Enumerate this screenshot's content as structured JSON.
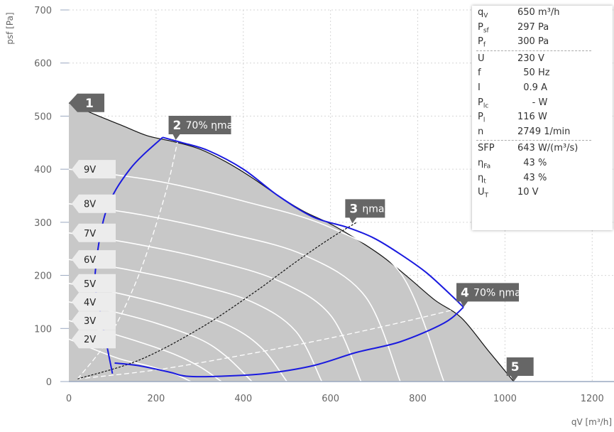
{
  "chart_data": {
    "type": "line",
    "title": "",
    "xlabel": "qV [m³/h]",
    "ylabel": "psf [Pa]",
    "xlim": [
      0,
      1250
    ],
    "ylim": [
      0,
      700
    ],
    "xticks": [
      0,
      200,
      400,
      600,
      800,
      1000,
      1200
    ],
    "yticks": [
      0,
      100,
      200,
      300,
      400,
      500,
      600,
      700
    ],
    "grid": true,
    "envelope": {
      "x": [
        0,
        60,
        120,
        180,
        240,
        300,
        360,
        420,
        480,
        540,
        600,
        660,
        720,
        780,
        840,
        900,
        960,
        1020
      ],
      "y": [
        525,
        503,
        483,
        463,
        452,
        438,
        414,
        384,
        350,
        320,
        297,
        268,
        235,
        195,
        153,
        120,
        60,
        0
      ]
    },
    "series": [
      {
        "name": "2V",
        "x": [
          0,
          60,
          120,
          180,
          240,
          280
        ],
        "y": [
          80,
          60,
          42,
          30,
          15,
          0
        ]
      },
      {
        "name": "3V",
        "x": [
          0,
          80,
          160,
          240,
          300,
          350
        ],
        "y": [
          115,
          95,
          75,
          52,
          28,
          0
        ]
      },
      {
        "name": "4V",
        "x": [
          0,
          100,
          200,
          300,
          360,
          420
        ],
        "y": [
          150,
          132,
          110,
          80,
          48,
          0
        ]
      },
      {
        "name": "5V",
        "x": [
          0,
          120,
          240,
          360,
          440,
          500
        ],
        "y": [
          185,
          165,
          140,
          108,
          65,
          0
        ]
      },
      {
        "name": "6V",
        "x": [
          0,
          140,
          280,
          420,
          520,
          580
        ],
        "y": [
          230,
          210,
          185,
          150,
          95,
          0
        ]
      },
      {
        "name": "7V",
        "x": [
          0,
          160,
          320,
          480,
          600,
          670
        ],
        "y": [
          280,
          258,
          230,
          190,
          125,
          0
        ]
      },
      {
        "name": "8V",
        "x": [
          0,
          180,
          360,
          540,
          680,
          760
        ],
        "y": [
          335,
          312,
          280,
          238,
          160,
          0
        ]
      },
      {
        "name": "9V",
        "x": [
          0,
          200,
          400,
          600,
          760,
          860
        ],
        "y": [
          400,
          378,
          340,
          290,
          205,
          0
        ]
      }
    ],
    "curves": {
      "blue_left": {
        "x": [
          100,
          70,
          60,
          85,
          140,
          215
        ],
        "y": [
          15,
          140,
          200,
          320,
          400,
          460
        ]
      },
      "blue_top": {
        "x": [
          215,
          260,
          320,
          400,
          480,
          560,
          640,
          700,
          760,
          820,
          880,
          905
        ],
        "y": [
          460,
          450,
          435,
          400,
          350,
          310,
          290,
          270,
          240,
          205,
          160,
          140
        ]
      },
      "blue_bottom": {
        "x": [
          105,
          160,
          230,
          270,
          350,
          450,
          560,
          660,
          760,
          860,
          905
        ],
        "y": [
          35,
          30,
          18,
          10,
          10,
          15,
          30,
          55,
          75,
          110,
          140
        ]
      },
      "eff70_left": {
        "x": [
          20,
          90,
          160,
          220,
          250
        ],
        "y": [
          5,
          80,
          200,
          350,
          455
        ]
      },
      "eff_max": {
        "x": [
          20,
          160,
          300,
          420,
          520,
          600,
          660
        ],
        "y": [
          5,
          40,
          100,
          165,
          225,
          270,
          300
        ]
      },
      "eff70_right": {
        "x": [
          20,
          200,
          400,
          600,
          780,
          905
        ],
        "y": [
          5,
          22,
          50,
          82,
          115,
          140
        ]
      }
    },
    "points": [
      {
        "id": "1",
        "label": "",
        "x": 0,
        "y": 525
      },
      {
        "id": "2",
        "label": "70% ηmax",
        "x": 245,
        "y": 455
      },
      {
        "id": "3",
        "label": "ηmax",
        "x": 650,
        "y": 298
      },
      {
        "id": "4",
        "label": "70% ηmax",
        "x": 905,
        "y": 140
      },
      {
        "id": "5",
        "label": "",
        "x": 1020,
        "y": 0
      }
    ]
  },
  "info_panel": {
    "rows": [
      {
        "key": "q",
        "sub": "V",
        "value": "650 m³/h"
      },
      {
        "key": "P",
        "sub": "sf",
        "value": "297 Pa"
      },
      {
        "key": "P",
        "sub": "f",
        "value": "300 Pa"
      },
      {
        "key": "U",
        "sub": "",
        "value": "230 V",
        "sep_before": true
      },
      {
        "key": "f",
        "sub": "",
        "value": "  50 Hz"
      },
      {
        "key": "I",
        "sub": "",
        "value": "  0.9 A"
      },
      {
        "key": "P",
        "sub": "lc",
        "value": "     - W"
      },
      {
        "key": "P",
        "sub": "l",
        "value": "116 W"
      },
      {
        "key": "n",
        "sub": "",
        "value": "2749 1/min"
      },
      {
        "key": "SFP",
        "sub": "",
        "value": "643 W/(m³/s)",
        "sep_before": true
      },
      {
        "key": "η",
        "sub": "Fa",
        "value": "  43 %"
      },
      {
        "key": "η",
        "sub": "t",
        "value": "  43 %"
      },
      {
        "key": "U",
        "sub": "T",
        "value": "10 V"
      }
    ]
  },
  "colors": {
    "area": "#c8c8c8",
    "grid": "#d6d6d6",
    "voltage_lines": "#ffffff",
    "operating_limit": "#1a1adf",
    "max_efficiency": "#111111",
    "efficiency_70": "#ffffff",
    "marker": "#666666"
  }
}
